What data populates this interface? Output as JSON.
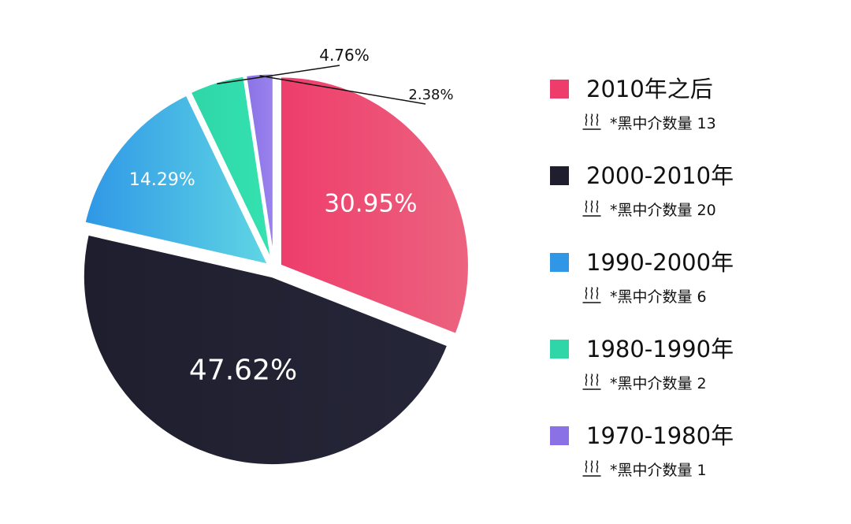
{
  "chart_data": {
    "type": "pie",
    "title": "",
    "slices": [
      {
        "label": "2010年之后",
        "value": 30.95,
        "percent_label": "30.95%",
        "count_text": "*黑中介数量 13",
        "color": "#ee3d6b",
        "color_end": "#ec637f",
        "dark_text": false
      },
      {
        "label": "2000-2010年",
        "value": 47.62,
        "percent_label": "47.62%",
        "count_text": "*黑中介数量 20",
        "color": "#1f1e2e",
        "color_end": "#252638",
        "dark_text": false
      },
      {
        "label": "1990-2000年",
        "value": 14.29,
        "percent_label": "14.29%",
        "count_text": "*黑中介数量 6",
        "color": "#2f97e6",
        "color_end": "#5fd6e4",
        "dark_text": false
      },
      {
        "label": "1980-1990年",
        "value": 4.76,
        "percent_label": "4.76%",
        "count_text": "*黑中介数量 2",
        "color": "#2fd6a8",
        "color_end": "#35e2b0",
        "dark_text": true
      },
      {
        "label": "1970-1980年",
        "value": 2.38,
        "percent_label": "2.38%",
        "count_text": "*黑中介数量 1",
        "color": "#8a72e6",
        "color_end": "#9a82ee",
        "dark_text": true
      }
    ],
    "legend_position": "right",
    "legend_icon": "heat-waves-icon"
  }
}
